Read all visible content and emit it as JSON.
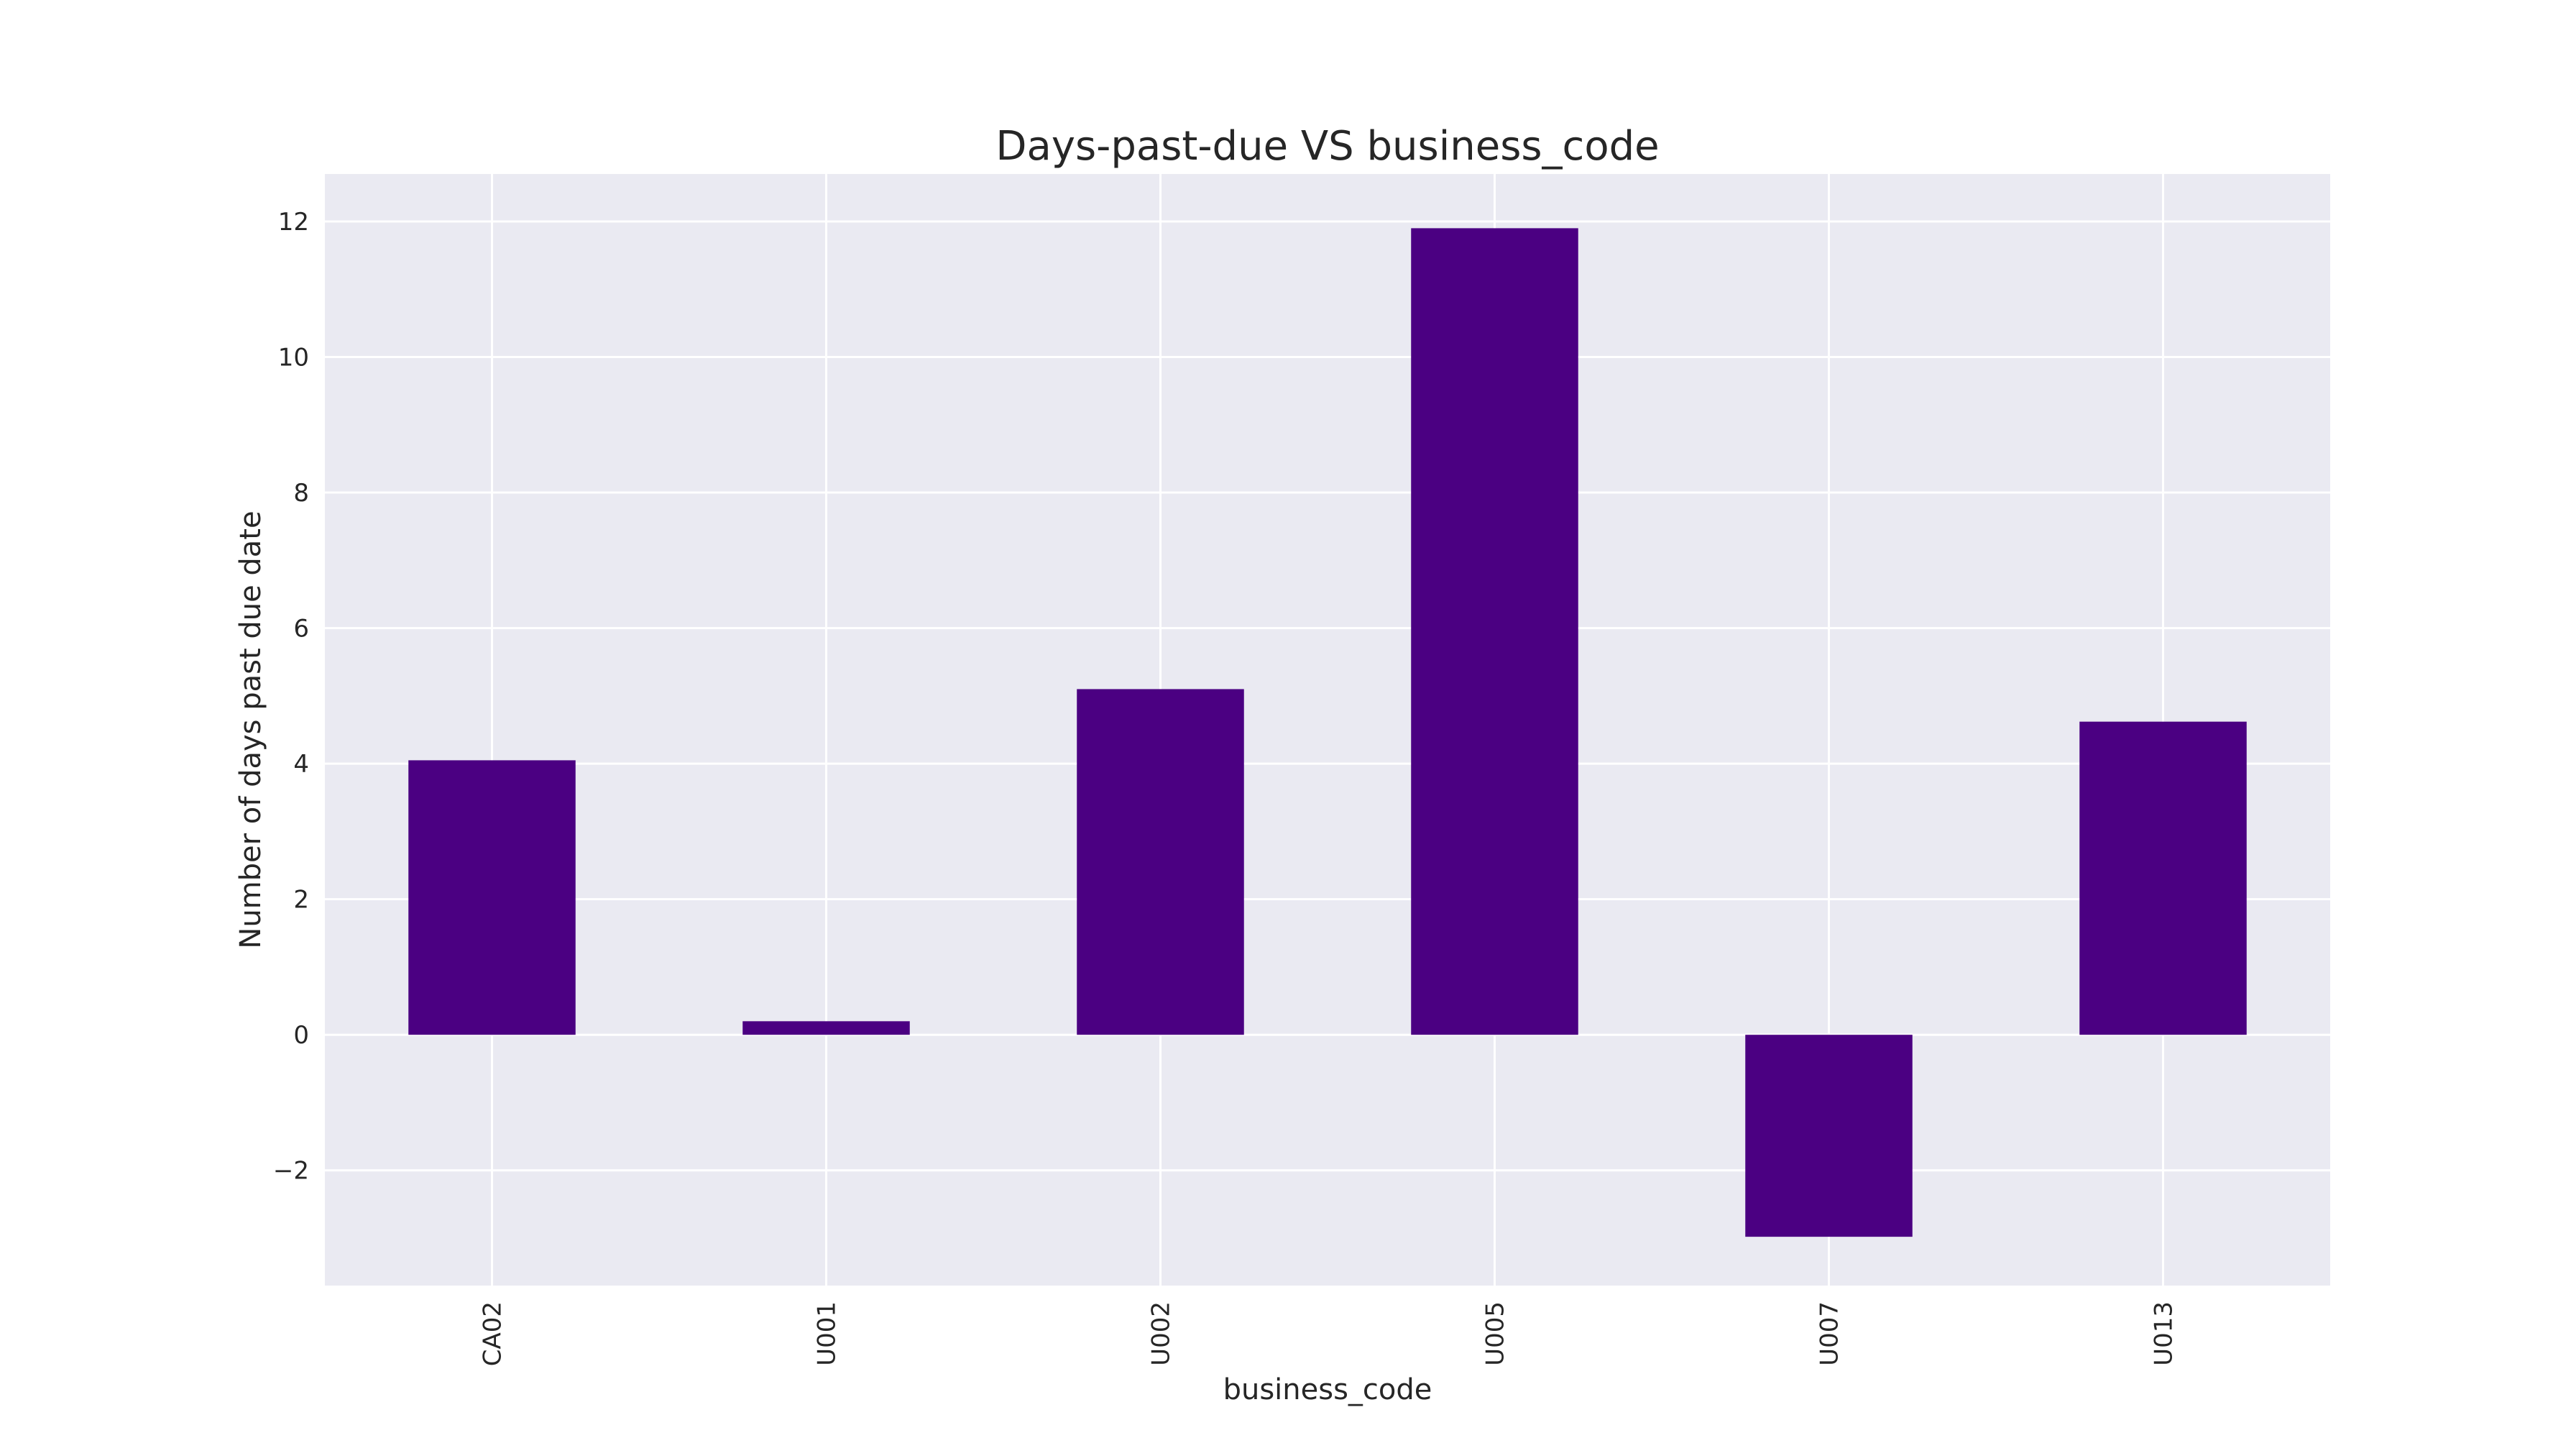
{
  "chart_data": {
    "type": "bar",
    "title": "Days-past-due VS business_code",
    "xlabel": "business_code",
    "ylabel": "Number of days past due date",
    "categories": [
      "CA02",
      "U001",
      "U002",
      "U005",
      "U007",
      "U013"
    ],
    "values": [
      4.05,
      0.2,
      5.1,
      11.9,
      -2.98,
      4.62
    ],
    "ylim": [
      -3.7,
      12.7
    ],
    "yticks": [
      -2,
      0,
      2,
      4,
      6,
      8,
      10,
      12
    ],
    "ytick_labels": [
      "−2",
      "0",
      "2",
      "4",
      "6",
      "8",
      "10",
      "12"
    ],
    "grid": true,
    "bar_color": "#4b0082",
    "background_color": "#eaeaf2"
  }
}
